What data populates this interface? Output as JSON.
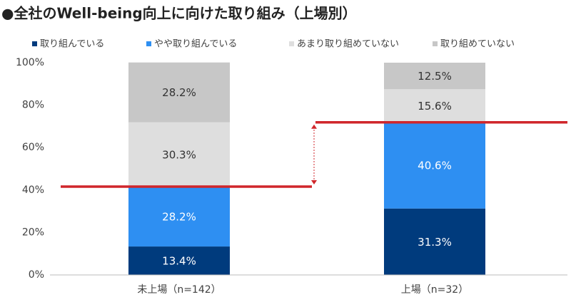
{
  "chart_data": {
    "type": "stacked_bar",
    "title": "●全社のWell-being向上に向けた取り組み（上場別）",
    "categories": [
      "未上場（n=142）",
      "上場（n=32）"
    ],
    "series": [
      {
        "name": "取り組んでいる",
        "color": "#003b7d",
        "values": [
          13.4,
          31.3
        ],
        "value_labels": [
          "13.4%",
          "31.3%"
        ]
      },
      {
        "name": "やや取り組んでいる",
        "color": "#2e8ff2",
        "values": [
          28.2,
          40.6
        ],
        "value_labels": [
          "28.2%",
          "40.6%"
        ]
      },
      {
        "name": "あまり取り組めていない",
        "color": "#dedede",
        "values": [
          30.3,
          15.6
        ],
        "value_labels": [
          "30.3%",
          "15.6%"
        ]
      },
      {
        "name": "取り組めていない",
        "color": "#c7c7c7",
        "values": [
          28.2,
          12.5
        ],
        "value_labels": [
          "28.2%",
          "12.5%"
        ]
      }
    ],
    "ylim": [
      0,
      100
    ],
    "yticks": [
      {
        "value": 0,
        "label": "0%"
      },
      {
        "value": 20,
        "label": "20%"
      },
      {
        "value": 40,
        "label": "40%"
      },
      {
        "value": 60,
        "label": "60%"
      },
      {
        "value": 80,
        "label": "80%"
      },
      {
        "value": 100,
        "label": "100%"
      }
    ],
    "grid": false,
    "highlight_color": "#d0262b"
  }
}
